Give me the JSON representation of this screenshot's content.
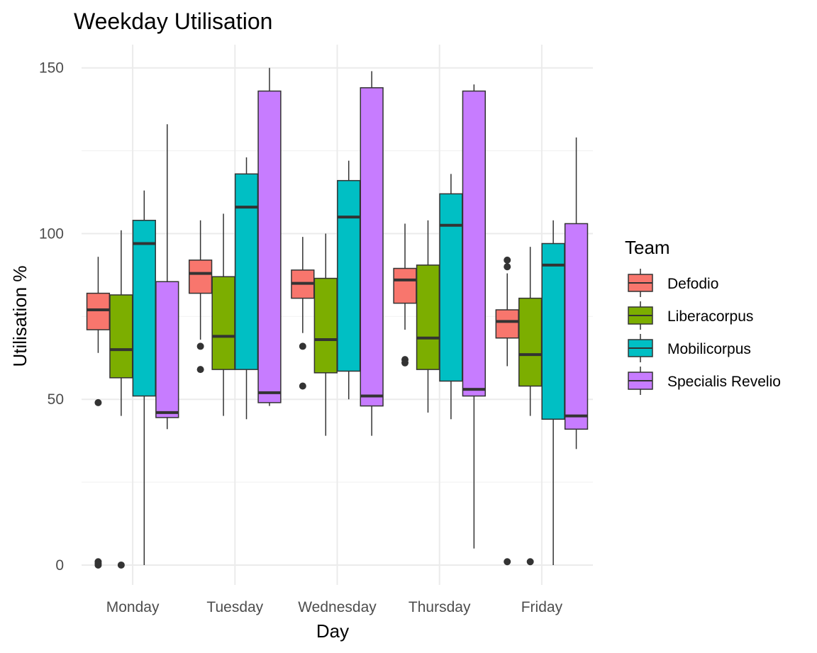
{
  "chart_data": {
    "type": "box",
    "title": "Weekday Utilisation",
    "xlabel": "Day",
    "ylabel": "Utilisation %",
    "categories": [
      "Monday",
      "Tuesday",
      "Wednesday",
      "Thursday",
      "Friday"
    ],
    "y_ticks": [
      0,
      50,
      100,
      150
    ],
    "ylim": [
      -6,
      157
    ],
    "grid": true,
    "legend": {
      "title": "Team",
      "position": "right"
    },
    "series": [
      {
        "name": "Defodio",
        "color": "#F8766D",
        "boxes": [
          {
            "min": 64,
            "q1": 71,
            "median": 77,
            "q3": 82,
            "max": 93,
            "outliers": [
              49,
              1,
              0.5,
              0
            ]
          },
          {
            "min": 68,
            "q1": 82,
            "median": 88,
            "q3": 92,
            "max": 104,
            "outliers": [
              66,
              59
            ]
          },
          {
            "min": 70,
            "q1": 80.5,
            "median": 85,
            "q3": 89,
            "max": 99,
            "outliers": [
              66,
              54
            ]
          },
          {
            "min": 71,
            "q1": 79,
            "median": 86,
            "q3": 89.5,
            "max": 103,
            "outliers": [
              62,
              61
            ]
          },
          {
            "min": 60,
            "q1": 68.5,
            "median": 73.5,
            "q3": 77,
            "max": 88,
            "outliers": [
              92,
              90,
              1
            ]
          }
        ]
      },
      {
        "name": "Liberacorpus",
        "color": "#7CAE00",
        "boxes": [
          {
            "min": 45,
            "q1": 56.5,
            "median": 65,
            "q3": 81.5,
            "max": 101,
            "outliers": [
              0
            ]
          },
          {
            "min": 45,
            "q1": 59,
            "median": 69,
            "q3": 87,
            "max": 106,
            "outliers": []
          },
          {
            "min": 39,
            "q1": 58,
            "median": 68,
            "q3": 86.5,
            "max": 100,
            "outliers": []
          },
          {
            "min": 46,
            "q1": 59,
            "median": 68.5,
            "q3": 90.5,
            "max": 104,
            "outliers": []
          },
          {
            "min": 45,
            "q1": 54,
            "median": 63.5,
            "q3": 80.5,
            "max": 96,
            "outliers": [
              1
            ]
          }
        ]
      },
      {
        "name": "Mobilicorpus",
        "color": "#00BFC4",
        "boxes": [
          {
            "min": 0,
            "q1": 51,
            "median": 97,
            "q3": 104,
            "max": 113,
            "outliers": []
          },
          {
            "min": 44,
            "q1": 59,
            "median": 108,
            "q3": 118,
            "max": 123,
            "outliers": []
          },
          {
            "min": 50,
            "q1": 58.5,
            "median": 105,
            "q3": 116,
            "max": 122,
            "outliers": []
          },
          {
            "min": 44,
            "q1": 55.5,
            "median": 102.5,
            "q3": 112,
            "max": 118,
            "outliers": []
          },
          {
            "min": 0,
            "q1": 44,
            "median": 90.5,
            "q3": 97,
            "max": 104,
            "outliers": []
          }
        ]
      },
      {
        "name": "Specialis Revelio",
        "color": "#C77CFF",
        "boxes": [
          {
            "min": 41,
            "q1": 44.5,
            "median": 46,
            "q3": 85.5,
            "max": 133,
            "outliers": []
          },
          {
            "min": 48,
            "q1": 49,
            "median": 52,
            "q3": 143,
            "max": 150,
            "outliers": []
          },
          {
            "min": 39,
            "q1": 48,
            "median": 51,
            "q3": 144,
            "max": 149,
            "outliers": []
          },
          {
            "min": 5,
            "q1": 51,
            "median": 53,
            "q3": 143,
            "max": 145,
            "outliers": []
          },
          {
            "min": 35,
            "q1": 41,
            "median": 45,
            "q3": 103,
            "max": 129,
            "outliers": []
          }
        ]
      }
    ]
  }
}
